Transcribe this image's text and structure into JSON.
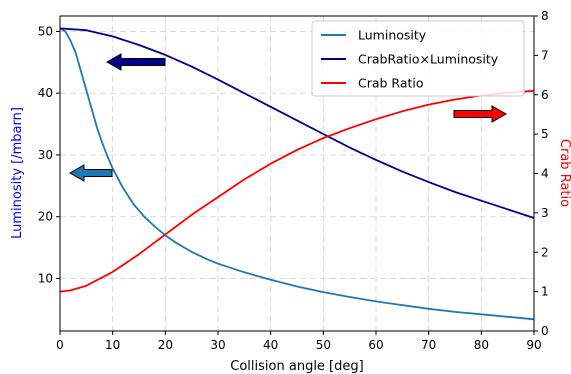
{
  "chart_data": {
    "type": "line",
    "xlabel": "Collision angle [deg]",
    "ylabel_left": "Luminosity [/mbarn]",
    "ylabel_right": "Crab Ratio",
    "xlim": [
      0,
      90
    ],
    "ylim_left": [
      1.5,
      52.5
    ],
    "ylim_right": [
      0,
      8
    ],
    "xticks": [
      0,
      10,
      20,
      30,
      40,
      50,
      60,
      70,
      80,
      90
    ],
    "yticks_left": [
      10,
      20,
      30,
      40,
      50
    ],
    "yticks_right": [
      0,
      1,
      2,
      3,
      4,
      5,
      6,
      7,
      8
    ],
    "grid": true,
    "legend_position": "top-right",
    "series": [
      {
        "name": "Luminosity",
        "axis": "left",
        "color": "#1f77b4",
        "x": [
          0,
          1,
          2,
          3,
          4,
          5,
          6,
          7,
          8,
          9,
          10,
          12,
          14,
          16,
          18,
          20,
          22,
          25,
          28,
          30,
          35,
          40,
          45,
          50,
          55,
          60,
          65,
          70,
          75,
          80,
          85,
          90
        ],
        "y": [
          50.5,
          50.0,
          48.5,
          46.5,
          43.5,
          40.5,
          37.5,
          34.5,
          32.0,
          29.8,
          27.8,
          24.6,
          22.0,
          20.0,
          18.4,
          17.0,
          15.8,
          14.3,
          13.1,
          12.4,
          11.0,
          9.8,
          8.7,
          7.8,
          7.0,
          6.3,
          5.7,
          5.1,
          4.6,
          4.2,
          3.8,
          3.4
        ]
      },
      {
        "name": "CrabRatio×Luminosity",
        "axis": "left",
        "color": "#00008b",
        "x": [
          0,
          5,
          10,
          15,
          20,
          25,
          30,
          35,
          40,
          45,
          50,
          55,
          60,
          65,
          70,
          75,
          80,
          85,
          90
        ],
        "y": [
          50.5,
          50.2,
          49.2,
          47.8,
          46.2,
          44.3,
          42.2,
          40.0,
          37.8,
          35.6,
          33.4,
          31.2,
          29.2,
          27.3,
          25.6,
          24.0,
          22.6,
          21.2,
          19.8
        ]
      },
      {
        "name": "Crab Ratio",
        "axis": "right",
        "color": "#ff0000",
        "x": [
          0,
          2,
          5,
          10,
          15,
          20,
          25,
          30,
          35,
          40,
          45,
          50,
          55,
          60,
          65,
          70,
          75,
          80,
          85,
          90
        ],
        "y": [
          1.0,
          1.03,
          1.15,
          1.5,
          1.95,
          2.45,
          2.95,
          3.4,
          3.85,
          4.25,
          4.6,
          4.9,
          5.15,
          5.38,
          5.58,
          5.75,
          5.88,
          5.98,
          6.05,
          6.1
        ]
      }
    ],
    "annotations": [
      {
        "shape": "arrow-left",
        "color": "#00008b",
        "points_to": "left-axis"
      },
      {
        "shape": "arrow-left",
        "color": "#1f77b4",
        "points_to": "left-axis"
      },
      {
        "shape": "arrow-right",
        "color": "#ff0000",
        "points_to": "right-axis"
      }
    ]
  }
}
